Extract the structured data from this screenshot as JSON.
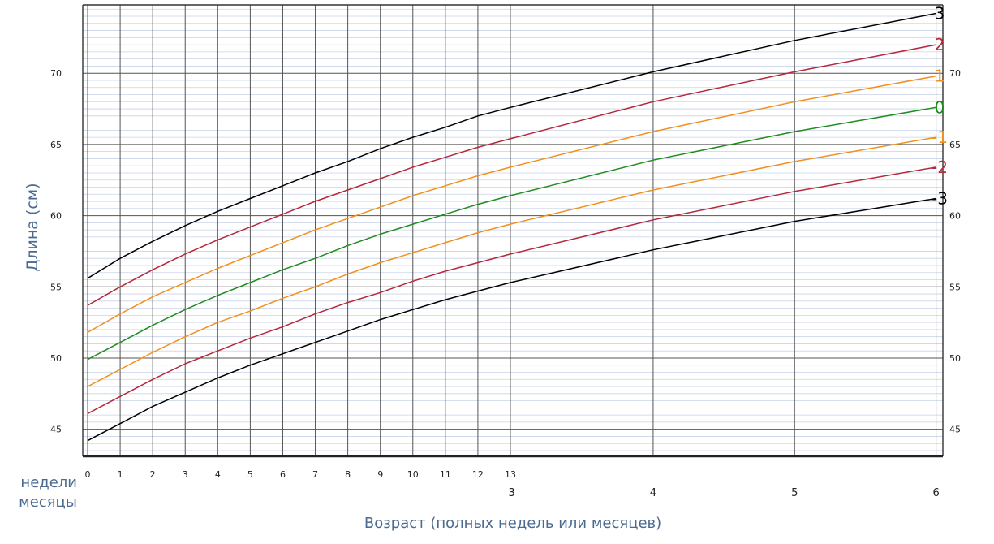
{
  "chart_data": {
    "type": "line",
    "ylabel": "Длина (см)",
    "xlabel": "Возраст (полных недель или месяцев)",
    "row_label_weeks": "недели",
    "row_label_months": "месяцы",
    "ylim": [
      43.1,
      74.8
    ],
    "y_ticks": [
      45,
      50,
      55,
      60,
      65,
      70
    ],
    "y_ticks_left": [
      "45",
      "50",
      "55",
      "60",
      "65",
      "70"
    ],
    "y_ticks_right": [
      "45",
      "50",
      "55",
      "60",
      "65",
      "70"
    ],
    "xlim_weeks": [
      -0.15,
      26.3
    ],
    "week_ticks": [
      0,
      1,
      2,
      3,
      4,
      5,
      6,
      7,
      8,
      9,
      10,
      11,
      12,
      13
    ],
    "week_tick_labels": [
      "0",
      "1",
      "2",
      "3",
      "4",
      "5",
      "6",
      "7",
      "8",
      "9",
      "10",
      "11",
      "12",
      "13"
    ],
    "month_ticks_weeks": [
      13.04,
      17.39,
      21.74,
      26.09
    ],
    "month_tick_labels": [
      "3",
      "4",
      "5",
      "6"
    ],
    "grid": true,
    "x_weeks": [
      0,
      1,
      2,
      3,
      4,
      5,
      6,
      7,
      8,
      9,
      10,
      11,
      12,
      13,
      17.39,
      21.74,
      26.09
    ],
    "series": [
      {
        "name": "3",
        "color": "#000000",
        "values": [
          55.6,
          57.0,
          58.2,
          59.3,
          60.3,
          61.2,
          62.1,
          63.0,
          63.8,
          64.7,
          65.5,
          66.2,
          67.0,
          67.6,
          70.1,
          72.3,
          74.2
        ]
      },
      {
        "name": "2",
        "color": "#b5283a",
        "values": [
          53.7,
          55.0,
          56.2,
          57.3,
          58.3,
          59.2,
          60.1,
          61.0,
          61.8,
          62.6,
          63.4,
          64.1,
          64.8,
          65.4,
          68.0,
          70.1,
          72.0
        ]
      },
      {
        "name": "1",
        "color": "#f0901e",
        "values": [
          51.8,
          53.1,
          54.3,
          55.3,
          56.3,
          57.2,
          58.1,
          59.0,
          59.8,
          60.6,
          61.4,
          62.1,
          62.8,
          63.4,
          65.9,
          68.0,
          69.8
        ]
      },
      {
        "name": "0",
        "color": "#1e8c1e",
        "values": [
          49.9,
          51.1,
          52.3,
          53.4,
          54.4,
          55.3,
          56.2,
          57.0,
          57.9,
          58.7,
          59.4,
          60.1,
          60.8,
          61.4,
          63.9,
          65.9,
          67.6
        ]
      },
      {
        "name": "-1",
        "color": "#f0901e",
        "values": [
          48.0,
          49.2,
          50.4,
          51.5,
          52.5,
          53.3,
          54.2,
          55.0,
          55.9,
          56.7,
          57.4,
          58.1,
          58.8,
          59.4,
          61.8,
          63.8,
          65.5
        ]
      },
      {
        "name": "-2",
        "color": "#b5283a",
        "values": [
          46.1,
          47.3,
          48.5,
          49.6,
          50.5,
          51.4,
          52.2,
          53.1,
          53.9,
          54.6,
          55.4,
          56.1,
          56.7,
          57.3,
          59.7,
          61.7,
          63.4
        ]
      },
      {
        "name": "-3",
        "color": "#000000",
        "values": [
          44.2,
          45.4,
          46.6,
          47.6,
          48.6,
          49.5,
          50.3,
          51.1,
          51.9,
          52.7,
          53.4,
          54.1,
          54.7,
          55.3,
          57.6,
          59.6,
          61.2
        ]
      }
    ]
  }
}
